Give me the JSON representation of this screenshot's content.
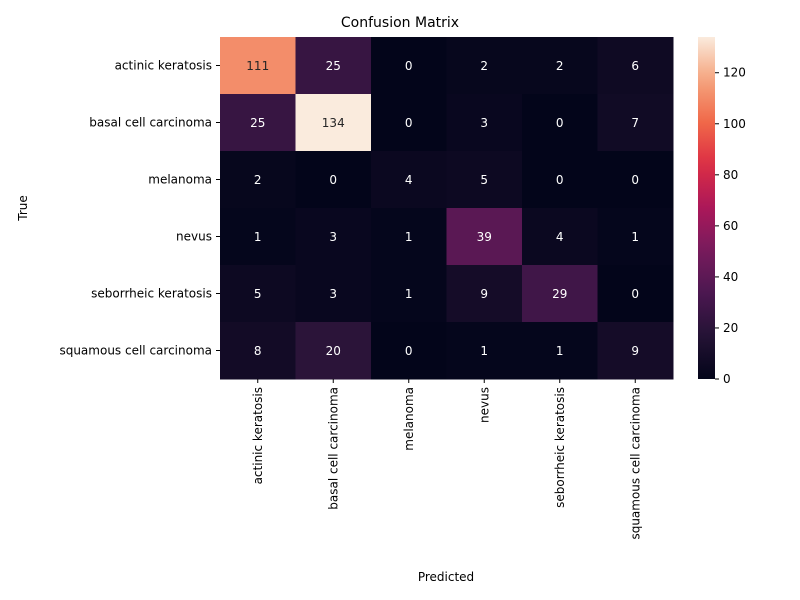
{
  "chart_data": {
    "type": "heatmap",
    "title": "Confusion Matrix",
    "xlabel": "Predicted",
    "ylabel": "True",
    "x_categories": [
      "actinic keratosis",
      "basal cell carcinoma",
      "melanoma",
      "nevus",
      "seborrheic keratosis",
      "squamous cell carcinoma"
    ],
    "y_categories": [
      "actinic keratosis",
      "basal cell carcinoma",
      "melanoma",
      "nevus",
      "seborrheic keratosis",
      "squamous cell carcinoma"
    ],
    "values": [
      [
        111,
        25,
        0,
        2,
        2,
        6
      ],
      [
        25,
        134,
        0,
        3,
        0,
        7
      ],
      [
        2,
        0,
        4,
        5,
        0,
        0
      ],
      [
        1,
        3,
        1,
        39,
        4,
        1
      ],
      [
        5,
        3,
        1,
        9,
        29,
        0
      ],
      [
        8,
        20,
        0,
        1,
        1,
        9
      ]
    ],
    "colorbar": {
      "min": 0,
      "max": 134,
      "ticks": [
        0,
        20,
        40,
        60,
        80,
        100,
        120
      ],
      "colormap": "rocket"
    },
    "annotations": true,
    "grid": false
  }
}
